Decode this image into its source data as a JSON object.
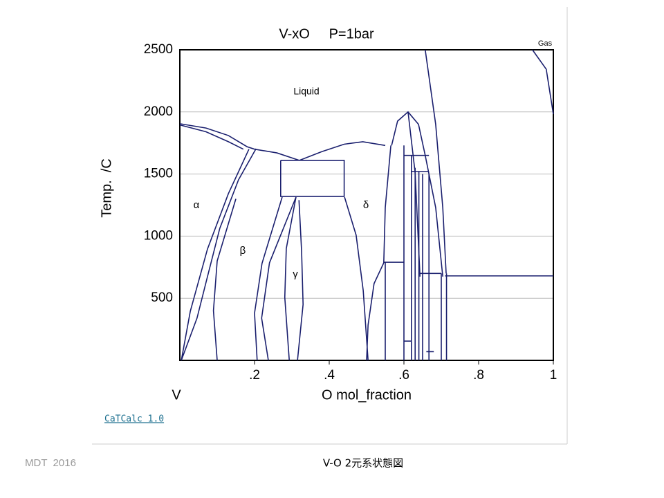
{
  "chart_data": {
    "type": "phase-diagram",
    "title": "V-xO     P=1bar",
    "xlabel": "O mol_fraction",
    "ylabel": "Temp.  /C",
    "x_start_label": "V",
    "annotations": [
      "Liquid",
      "α",
      "β",
      "γ",
      "δ",
      "Gas"
    ],
    "color": "#1a1f6e",
    "xlim": [
      0,
      1
    ],
    "ylim": [
      0,
      2500
    ],
    "xticks": [
      {
        "value": 0.2,
        "label": ".2"
      },
      {
        "value": 0.4,
        "label": ".4"
      },
      {
        "value": 0.6,
        "label": ".6"
      },
      {
        "value": 0.8,
        "label": ".8"
      },
      1
    ],
    "yticks": [
      500,
      1000,
      1500,
      2000,
      2500
    ],
    "grid": true,
    "boundaries": [
      {
        "x": [
          0,
          0.07,
          0.13,
          0.18,
          0.2
        ],
        "y": [
          1905,
          1870,
          1810,
          1720,
          1700
        ]
      },
      {
        "x": [
          0,
          0.07,
          0.13,
          0.17
        ],
        "y": [
          1895,
          1840,
          1760,
          1700
        ]
      },
      {
        "x": [
          0.2,
          0.26,
          0.32
        ],
        "y": [
          1700,
          1670,
          1610
        ]
      },
      {
        "x": [
          0.32,
          0.38,
          0.44,
          0.49,
          0.55
        ],
        "y": [
          1610,
          1680,
          1740,
          1760,
          1730
        ]
      },
      {
        "x": [
          0.27,
          0.44,
          0.44,
          0.27,
          0.27
        ],
        "y": [
          1610,
          1610,
          1320,
          1320,
          1610
        ]
      },
      {
        "x": [
          0.185,
          0.13,
          0.074,
          0.028,
          0.004
        ],
        "y": [
          1700,
          1342,
          896,
          395,
          0
        ]
      },
      {
        "x": [
          0.204,
          0.157,
          0.107,
          0.074,
          0.046,
          0.004
        ],
        "y": [
          1704,
          1453,
          1063,
          674,
          340,
          0
        ]
      },
      {
        "x": [
          0.274,
          0.22,
          0.2,
          0.207
        ],
        "y": [
          1314,
          780,
          380,
          0
        ]
      },
      {
        "x": [
          0.15,
          0.1,
          0.09,
          0.1
        ],
        "y": [
          1300,
          800,
          400,
          0
        ]
      },
      {
        "x": [
          0.311,
          0.285,
          0.281,
          0.293
        ],
        "y": [
          1314,
          900,
          507,
          0
        ]
      },
      {
        "x": [
          0.319,
          0.326,
          0.33,
          0.315
        ],
        "y": [
          1290,
          880,
          450,
          0
        ]
      },
      {
        "x": [
          0.311,
          0.24,
          0.219,
          0.237
        ],
        "y": [
          1314,
          785,
          340,
          0
        ]
      },
      {
        "x": [
          0.441,
          0.472,
          0.491,
          0.504
        ],
        "y": [
          1314,
          1008,
          562,
          0
        ]
      },
      {
        "x": [
          0.546,
          0.52,
          0.504,
          0.5
        ],
        "y": [
          785,
          618,
          284,
          0
        ]
      },
      {
        "x": [
          0.565,
          0.55,
          0.546
        ],
        "y": [
          1730,
          1230,
          785
        ]
      },
      {
        "x": [
          0.567,
          0.583,
          0.611,
          0.639,
          0.657,
          0.685,
          0.704
        ],
        "y": [
          1730,
          1926,
          2000,
          1900,
          1650,
          1230,
          674
        ]
      },
      {
        "x": [
          0.611,
          0.63,
          0.643
        ],
        "y": [
          2000,
          1510,
          674
        ]
      },
      {
        "x": [
          0.657,
          0.685,
          0.704,
          0.713
        ],
        "y": [
          2500,
          1900,
          1230,
          700
        ]
      },
      {
        "x": [
          0.944,
          0.981,
          1
        ],
        "y": [
          2500,
          2344,
          1982
        ]
      },
      {
        "x": [
          0.546,
          0.6
        ],
        "y": [
          790,
          790
        ]
      },
      {
        "x": [
          0.55,
          0.55
        ],
        "y": [
          790,
          0
        ]
      },
      {
        "x": [
          0.6,
          0.6
        ],
        "y": [
          1730,
          0
        ]
      },
      {
        "x": [
          0.6,
          0.62
        ],
        "y": [
          155,
          155
        ]
      },
      {
        "x": [
          0.62,
          0.62
        ],
        "y": [
          1650,
          0
        ]
      },
      {
        "x": [
          0.63,
          0.63
        ],
        "y": [
          1550,
          0
        ]
      },
      {
        "x": [
          0.64,
          0.64
        ],
        "y": [
          1520,
          0
        ]
      },
      {
        "x": [
          0.65,
          0.65
        ],
        "y": [
          1500,
          0
        ]
      },
      {
        "x": [
          0.667,
          0.667
        ],
        "y": [
          1500,
          0
        ]
      },
      {
        "x": [
          0.7,
          0.7
        ],
        "y": [
          700,
          0
        ]
      },
      {
        "x": [
          0.714,
          0.714
        ],
        "y": [
          700,
          0
        ]
      },
      {
        "x": [
          0.71,
          1
        ],
        "y": [
          680,
          680
        ]
      },
      {
        "x": [
          0.6,
          0.667
        ],
        "y": [
          1650,
          1650
        ]
      },
      {
        "x": [
          0.62,
          0.667
        ],
        "y": [
          1520,
          1520
        ]
      },
      {
        "x": [
          0.64,
          0.7
        ],
        "y": [
          700,
          700
        ]
      },
      {
        "x": [
          0.66,
          0.68
        ],
        "y": [
          70,
          70
        ]
      }
    ]
  },
  "footer": {
    "link": "CaTCalc 1.0",
    "left": "MDT  2016",
    "center": "V-O 2元系状態図"
  }
}
